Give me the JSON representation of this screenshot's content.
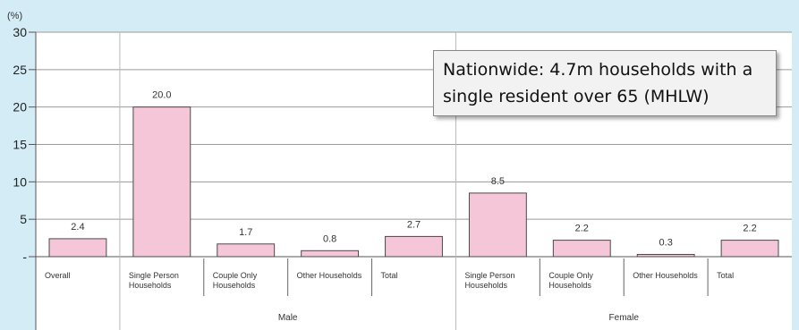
{
  "chart_data": {
    "type": "bar",
    "unit_label": "(%)",
    "ylim": [
      0,
      30
    ],
    "yticks": [
      "-",
      "5",
      "10",
      "15",
      "20",
      "25",
      "30"
    ],
    "categories": [
      "Overall",
      "Single Person Households",
      "Couple Only Households",
      "Other Households",
      "Total",
      "Single Person Households",
      "Couple Only Households",
      "Other Households",
      "Total"
    ],
    "values": [
      2.4,
      20.0,
      1.7,
      0.8,
      2.7,
      8.5,
      2.2,
      0.3,
      2.2
    ],
    "data_labels": [
      "2.4",
      "20.0",
      "1.7",
      "0.8",
      "2.7",
      "8.5",
      "2.2",
      "0.3",
      "2.2"
    ],
    "groups": [
      {
        "name": "Male",
        "start": 1,
        "end": 4
      },
      {
        "name": "Female",
        "start": 5,
        "end": 8
      }
    ],
    "bar_color": "#f4c6d8",
    "grid": true,
    "annotation": "Nationwide: 4.7m households with a single resident over 65 (MHLW)"
  }
}
